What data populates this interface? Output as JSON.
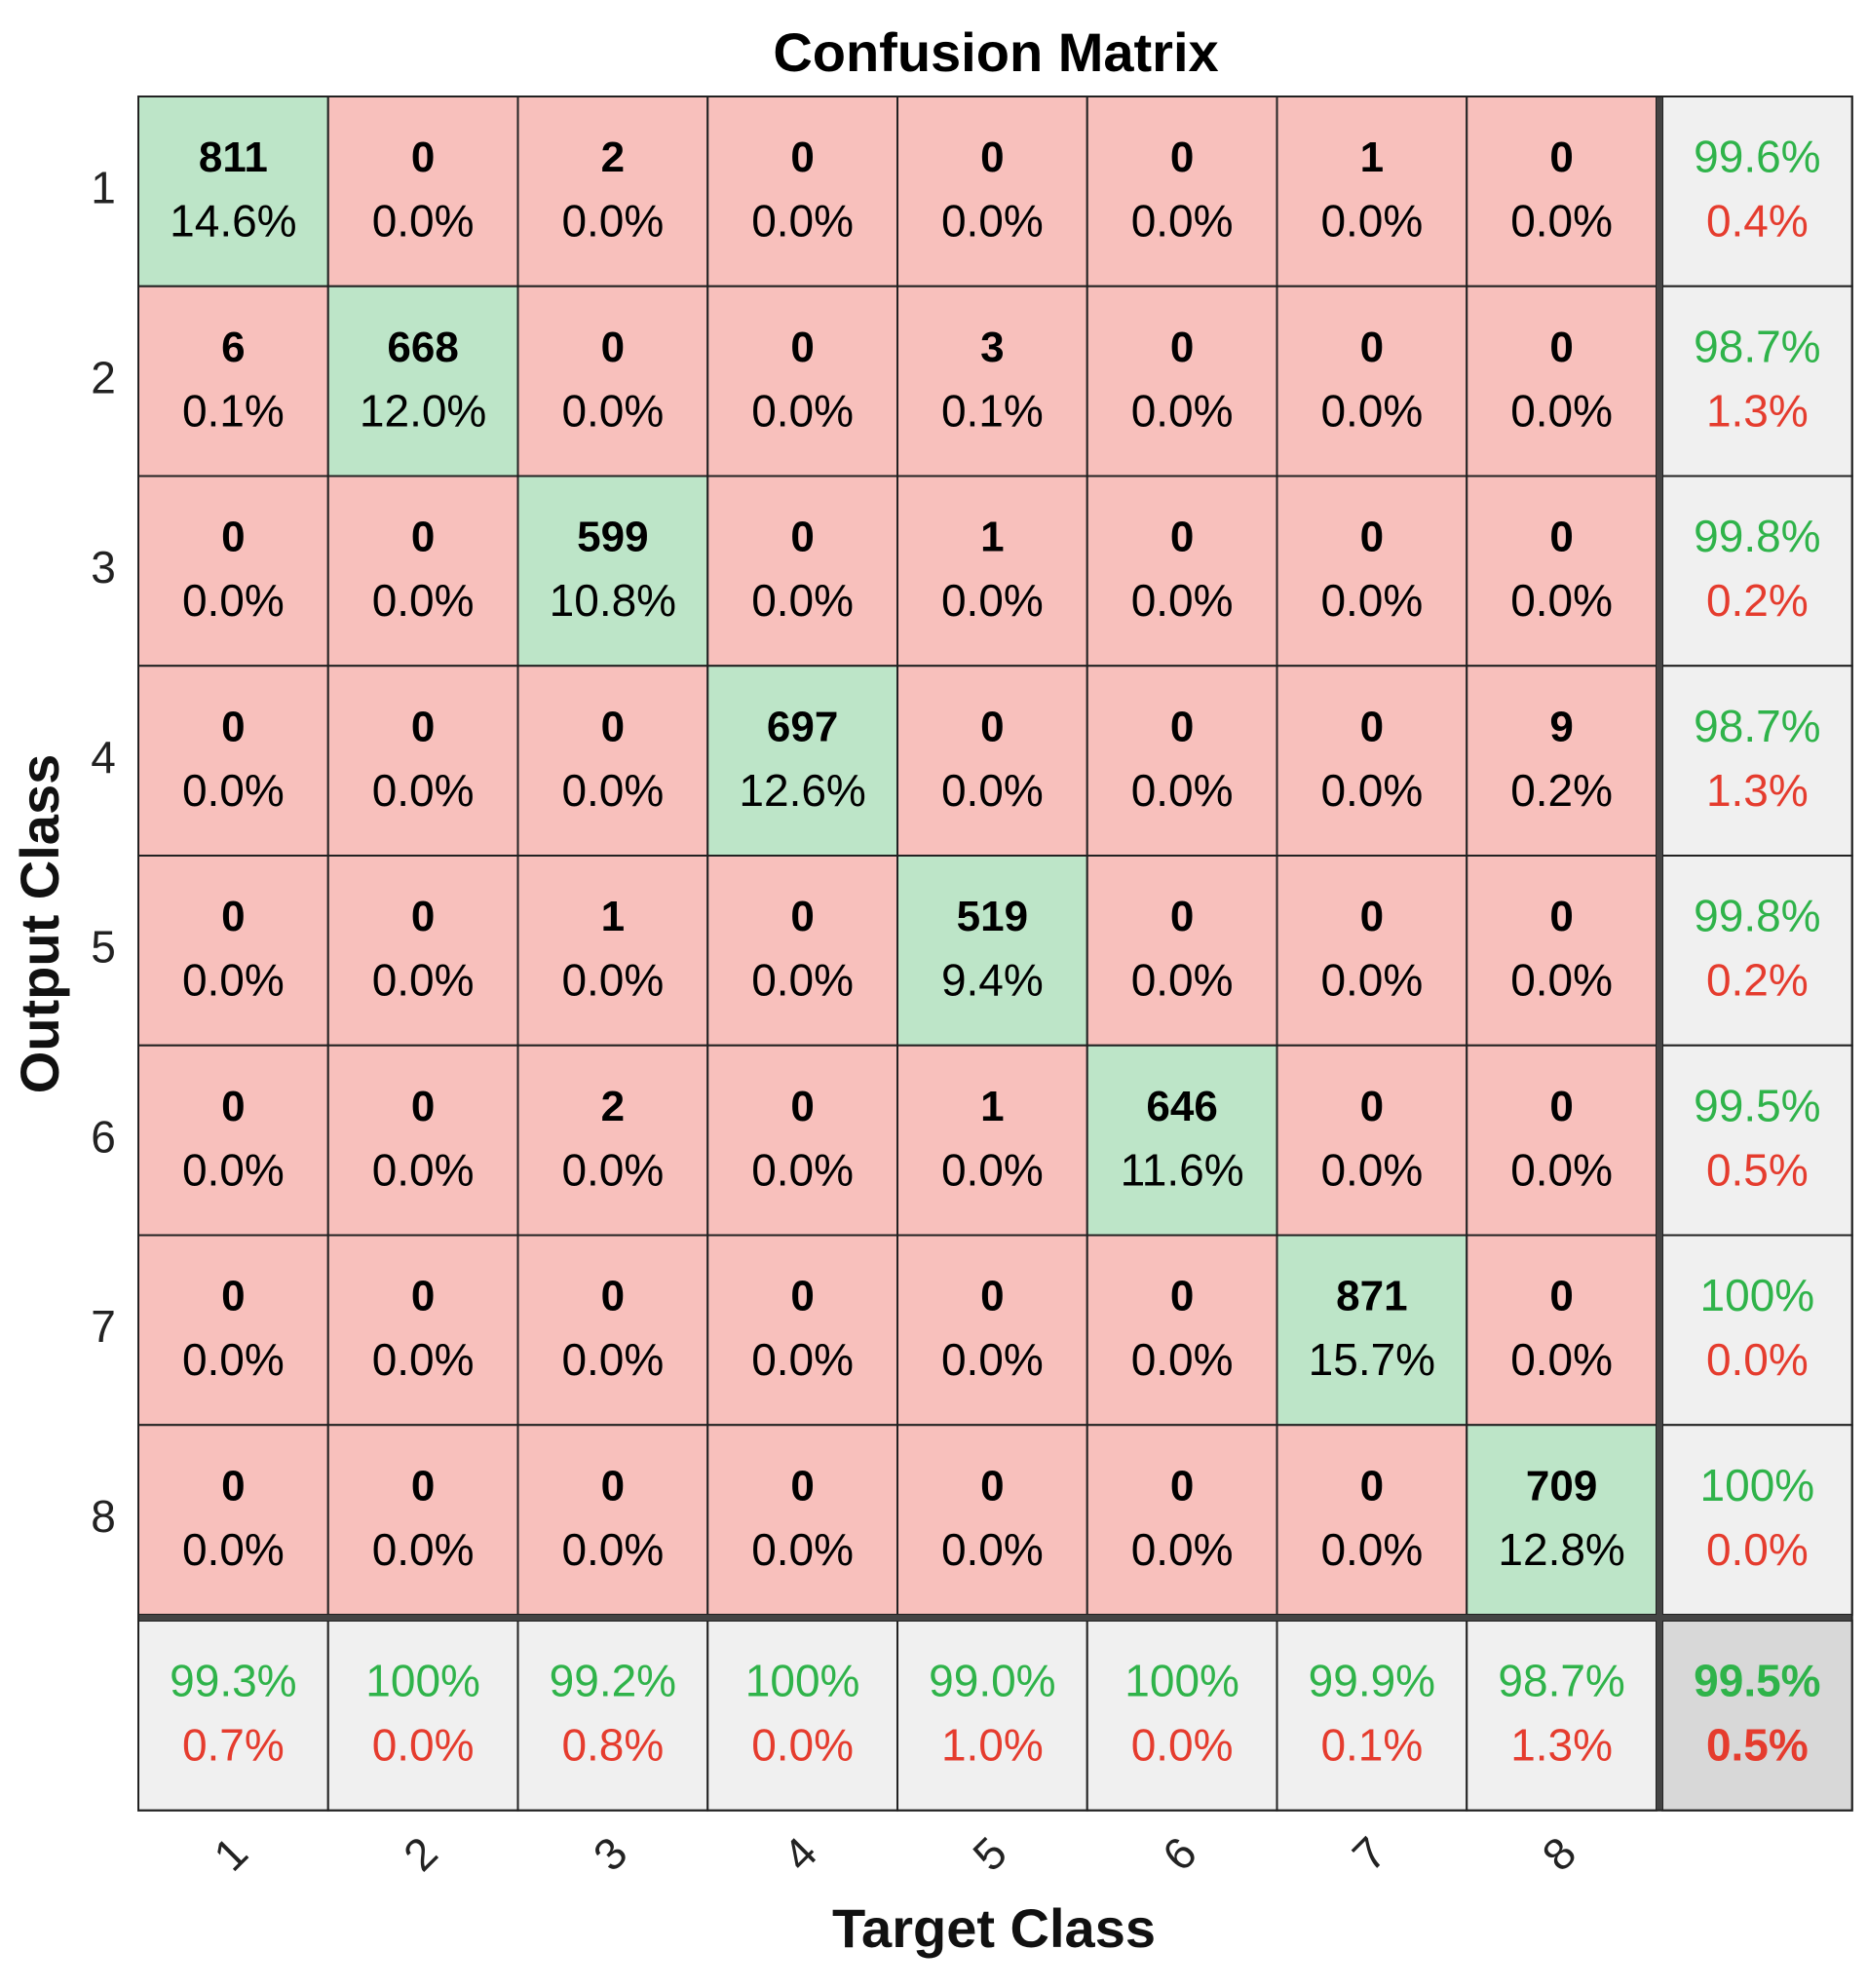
{
  "chart_data": {
    "type": "heatmap",
    "title": "Confusion Matrix",
    "xlabel": "Target Class",
    "ylabel": "Output Class",
    "x_tick_labels": [
      "1",
      "2",
      "3",
      "4",
      "5",
      "6",
      "7",
      "8"
    ],
    "y_tick_labels": [
      "1",
      "2",
      "3",
      "4",
      "5",
      "6",
      "7",
      "8"
    ],
    "counts": [
      [
        811,
        0,
        2,
        0,
        0,
        0,
        1,
        0
      ],
      [
        6,
        668,
        0,
        0,
        3,
        0,
        0,
        0
      ],
      [
        0,
        0,
        599,
        0,
        1,
        0,
        0,
        0
      ],
      [
        0,
        0,
        0,
        697,
        0,
        0,
        0,
        9
      ],
      [
        0,
        0,
        1,
        0,
        519,
        0,
        0,
        0
      ],
      [
        0,
        0,
        2,
        0,
        1,
        646,
        0,
        0
      ],
      [
        0,
        0,
        0,
        0,
        0,
        0,
        871,
        0
      ],
      [
        0,
        0,
        0,
        0,
        0,
        0,
        0,
        709
      ]
    ],
    "percents": [
      [
        "14.6%",
        "0.0%",
        "0.0%",
        "0.0%",
        "0.0%",
        "0.0%",
        "0.0%",
        "0.0%"
      ],
      [
        "0.1%",
        "12.0%",
        "0.0%",
        "0.0%",
        "0.1%",
        "0.0%",
        "0.0%",
        "0.0%"
      ],
      [
        "0.0%",
        "0.0%",
        "10.8%",
        "0.0%",
        "0.0%",
        "0.0%",
        "0.0%",
        "0.0%"
      ],
      [
        "0.0%",
        "0.0%",
        "0.0%",
        "12.6%",
        "0.0%",
        "0.0%",
        "0.0%",
        "0.2%"
      ],
      [
        "0.0%",
        "0.0%",
        "0.0%",
        "0.0%",
        "9.4%",
        "0.0%",
        "0.0%",
        "0.0%"
      ],
      [
        "0.0%",
        "0.0%",
        "0.0%",
        "0.0%",
        "0.0%",
        "11.6%",
        "0.0%",
        "0.0%"
      ],
      [
        "0.0%",
        "0.0%",
        "0.0%",
        "0.0%",
        "0.0%",
        "0.0%",
        "15.7%",
        "0.0%"
      ],
      [
        "0.0%",
        "0.0%",
        "0.0%",
        "0.0%",
        "0.0%",
        "0.0%",
        "0.0%",
        "12.8%"
      ]
    ],
    "row_summary": [
      [
        "99.6%",
        "0.4%"
      ],
      [
        "98.7%",
        "1.3%"
      ],
      [
        "99.8%",
        "0.2%"
      ],
      [
        "98.7%",
        "1.3%"
      ],
      [
        "99.8%",
        "0.2%"
      ],
      [
        "99.5%",
        "0.5%"
      ],
      [
        "100%",
        "0.0%"
      ],
      [
        "100%",
        "0.0%"
      ]
    ],
    "col_summary": [
      [
        "99.3%",
        "0.7%"
      ],
      [
        "100%",
        "0.0%"
      ],
      [
        "99.2%",
        "0.8%"
      ],
      [
        "100%",
        "0.0%"
      ],
      [
        "99.0%",
        "1.0%"
      ],
      [
        "100%",
        "0.0%"
      ],
      [
        "99.9%",
        "0.1%"
      ],
      [
        "98.7%",
        "1.3%"
      ]
    ],
    "overall": [
      "99.5%",
      "0.5%"
    ],
    "colors": {
      "correct_fill": "#bde5c8",
      "incorrect_fill": "#f8c0bc",
      "summary_fill": "#f0f0f0",
      "overall_fill": "#d8d8d8",
      "green_text": "#2fb34a",
      "red_text": "#e53c2e",
      "text": "#000000",
      "grid": "#222222"
    }
  }
}
